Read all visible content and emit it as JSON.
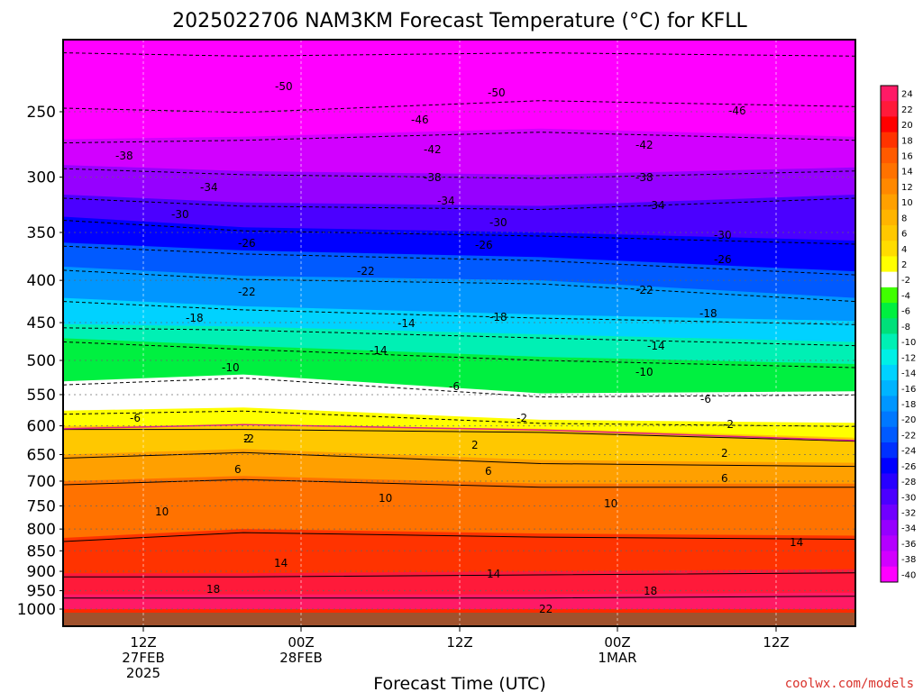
{
  "chart_data": {
    "type": "heatmap",
    "title": "2025022706 NAM3KM Forecast Temperature (°C) for KFLL",
    "xlabel": "Forecast Time (UTC)",
    "ylabel": "",
    "y_scale": "log-pressure",
    "ylim": [
      1030,
      200
    ],
    "y_ticks": [
      250,
      300,
      350,
      400,
      450,
      500,
      550,
      600,
      650,
      700,
      750,
      800,
      850,
      900,
      950,
      1000
    ],
    "x_ticks": [
      {
        "top": "12Z",
        "middle": "27FEB",
        "bottom": "2025"
      },
      {
        "top": "00Z",
        "middle": "28FEB",
        "bottom": ""
      },
      {
        "top": "12Z",
        "middle": "",
        "bottom": ""
      },
      {
        "top": "00Z",
        "middle": "1MAR",
        "bottom": ""
      },
      {
        "top": "12Z",
        "middle": "",
        "bottom": ""
      }
    ],
    "grid": true,
    "legend": "right colorbar",
    "colorbar_levels": [
      "24",
      "22",
      "20",
      "18",
      "16",
      "14",
      "12",
      "10",
      "8",
      "6",
      "4",
      "2",
      "-2",
      "-4",
      "-6",
      "-8",
      "-10",
      "-12",
      "-14",
      "-16",
      "-18",
      "-20",
      "-22",
      "-24",
      "-26",
      "-28",
      "-30",
      "-32",
      "-34",
      "-36",
      "-38",
      "-40"
    ],
    "colorbar_colors": [
      "#ff1a66",
      "#ff1a3a",
      "#ff0000",
      "#ff3300",
      "#ff5a00",
      "#ff7200",
      "#ff8800",
      "#ffa000",
      "#ffb400",
      "#ffc800",
      "#ffdc00",
      "#ffff00",
      "#ffffff",
      "#40ff00",
      "#00f040",
      "#00e07a",
      "#00f0b4",
      "#00f0e6",
      "#00d2ff",
      "#00b4ff",
      "#0096ff",
      "#0078ff",
      "#005aff",
      "#0030ff",
      "#0000ff",
      "#2800ff",
      "#4b00ff",
      "#7000ff",
      "#9600ff",
      "#b400ff",
      "#d200ff",
      "#ff00ff"
    ],
    "contour_labels_negative": [
      "-50",
      "-50",
      "-46",
      "-46",
      "-42",
      "-42",
      "-38",
      "-38",
      "-38",
      "-34",
      "-34",
      "-34",
      "-30",
      "-30",
      "-30",
      "-26",
      "-26",
      "-26",
      "-22",
      "-22",
      "-22",
      "-18",
      "-18",
      "-18",
      "-14",
      "-14",
      "-14",
      "-10",
      "-10",
      "-6",
      "-6",
      "-6",
      "-2",
      "-2",
      "-2"
    ],
    "contour_labels_positive": [
      "2",
      "2",
      "2",
      "6",
      "6",
      "6",
      "10",
      "10",
      "10",
      "14",
      "14",
      "14",
      "18",
      "18",
      "22"
    ],
    "credit": "coolwx.com/models"
  }
}
